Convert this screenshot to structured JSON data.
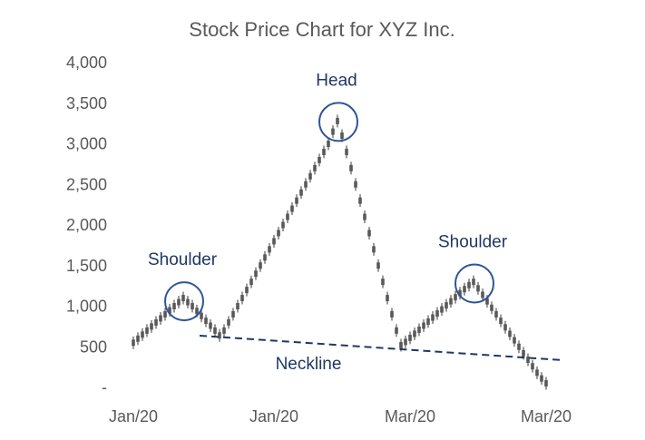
{
  "chart_data": {
    "type": "candlestick",
    "title": "Stock Price Chart for XYZ Inc.",
    "xlabel": "",
    "ylabel": "",
    "ylim": [
      0,
      4000
    ],
    "y_ticks": [
      {
        "value": 0,
        "label": "-"
      },
      {
        "value": 500,
        "label": "500"
      },
      {
        "value": 1000,
        "label": "1,000"
      },
      {
        "value": 1500,
        "label": "1,500"
      },
      {
        "value": 2000,
        "label": "2,000"
      },
      {
        "value": 2500,
        "label": "2,500"
      },
      {
        "value": 3000,
        "label": "3,000"
      },
      {
        "value": 3500,
        "label": "3,500"
      },
      {
        "value": 4000,
        "label": "4,000"
      }
    ],
    "x_ticks": [
      {
        "index": 0,
        "label": "Jan/20"
      },
      {
        "index": 31,
        "label": "Jan/20"
      },
      {
        "index": 61,
        "label": "Mar/20"
      },
      {
        "index": 91,
        "label": "Mar/20"
      }
    ],
    "grid": false,
    "series_color": "#595959",
    "annotation_color": "#2f5597",
    "values": [
      550,
      600,
      650,
      700,
      750,
      800,
      850,
      900,
      950,
      1000,
      1050,
      1100,
      1050,
      1000,
      940,
      880,
      820,
      760,
      700,
      640,
      700,
      800,
      900,
      1000,
      1100,
      1200,
      1300,
      1400,
      1500,
      1600,
      1700,
      1800,
      1900,
      2000,
      2100,
      2200,
      2300,
      2400,
      2500,
      2600,
      2700,
      2800,
      2900,
      3000,
      3150,
      3280,
      3100,
      2900,
      2700,
      2500,
      2300,
      2100,
      1900,
      1700,
      1500,
      1300,
      1100,
      900,
      700,
      520,
      560,
      610,
      660,
      710,
      760,
      810,
      860,
      910,
      960,
      1010,
      1060,
      1110,
      1160,
      1210,
      1260,
      1300,
      1220,
      1140,
      1060,
      980,
      900,
      820,
      740,
      660,
      580,
      500,
      420,
      340,
      260,
      180,
      110,
      50
    ],
    "annotations": [
      {
        "label": "Shoulder",
        "index": 11,
        "value": 1060
      },
      {
        "label": "Head",
        "index": 45,
        "value": 3270
      },
      {
        "label": "Shoulder",
        "index": 75,
        "value": 1280
      }
    ],
    "neckline": {
      "label": "Neckline",
      "from": {
        "index": 15,
        "value": 640
      },
      "to": {
        "index": 95,
        "value": 340
      }
    }
  }
}
